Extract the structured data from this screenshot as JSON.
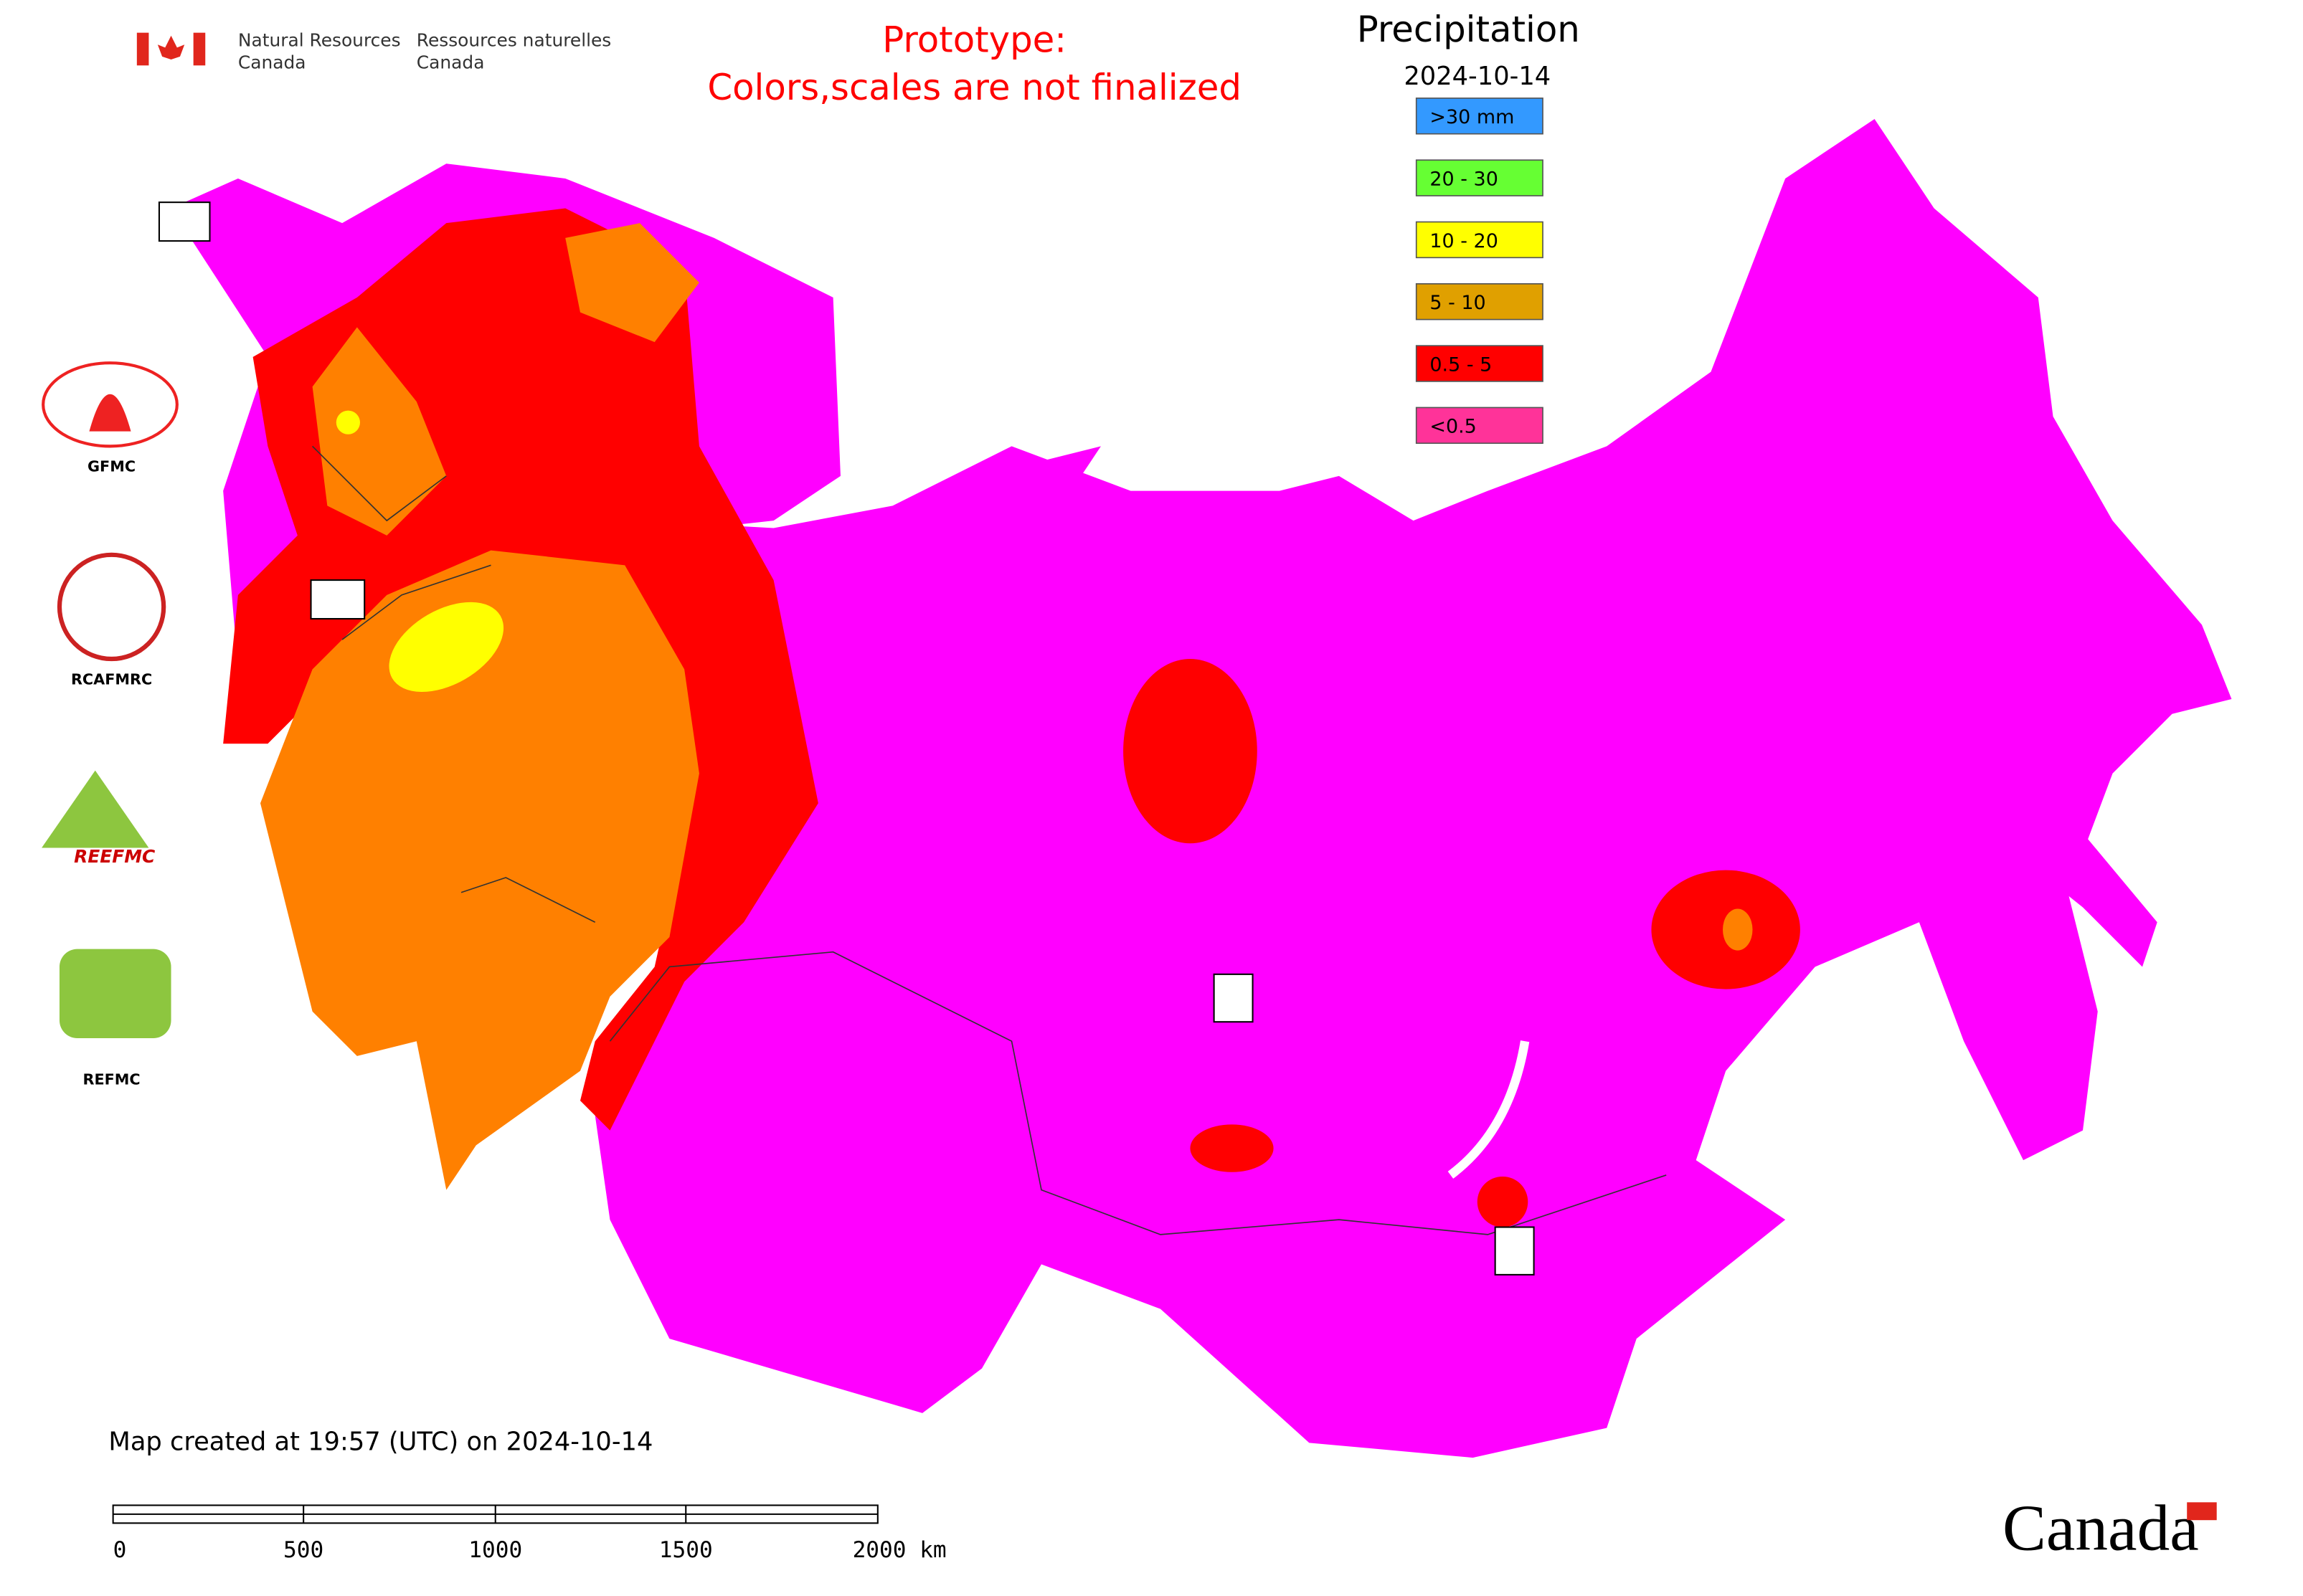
{
  "header": {
    "agency_en": [
      "Natural Resources",
      "Canada"
    ],
    "agency_fr": [
      "Ressources naturelles",
      "Canada"
    ],
    "prototype_note": [
      "Prototype:",
      "Colors,scales are not finalized"
    ]
  },
  "legend": {
    "title": "Precipitation",
    "date": "2024-10-14",
    "items": [
      {
        "label": ">30 mm",
        "color": "#3399ff"
      },
      {
        "label": "20 - 30",
        "color": "#66ff33"
      },
      {
        "label": "10 - 20",
        "color": "#ffff00"
      },
      {
        "label": "5 - 10",
        "color": "#e0a000"
      },
      {
        "label": "0.5 - 5",
        "color": "#ff0000"
      },
      {
        "label": "<0.5",
        "color": "#ff3399"
      }
    ]
  },
  "logos": [
    "GFMC",
    "RCAFMRC",
    "REEFMC",
    "REFMC"
  ],
  "footer": {
    "created": "Map created at 19:57 (UTC) on 2024-10-14",
    "wordmark": "Canada"
  },
  "scale_bar": {
    "labels": [
      "0",
      "500",
      "1000",
      "1500",
      "2000 km"
    ]
  }
}
